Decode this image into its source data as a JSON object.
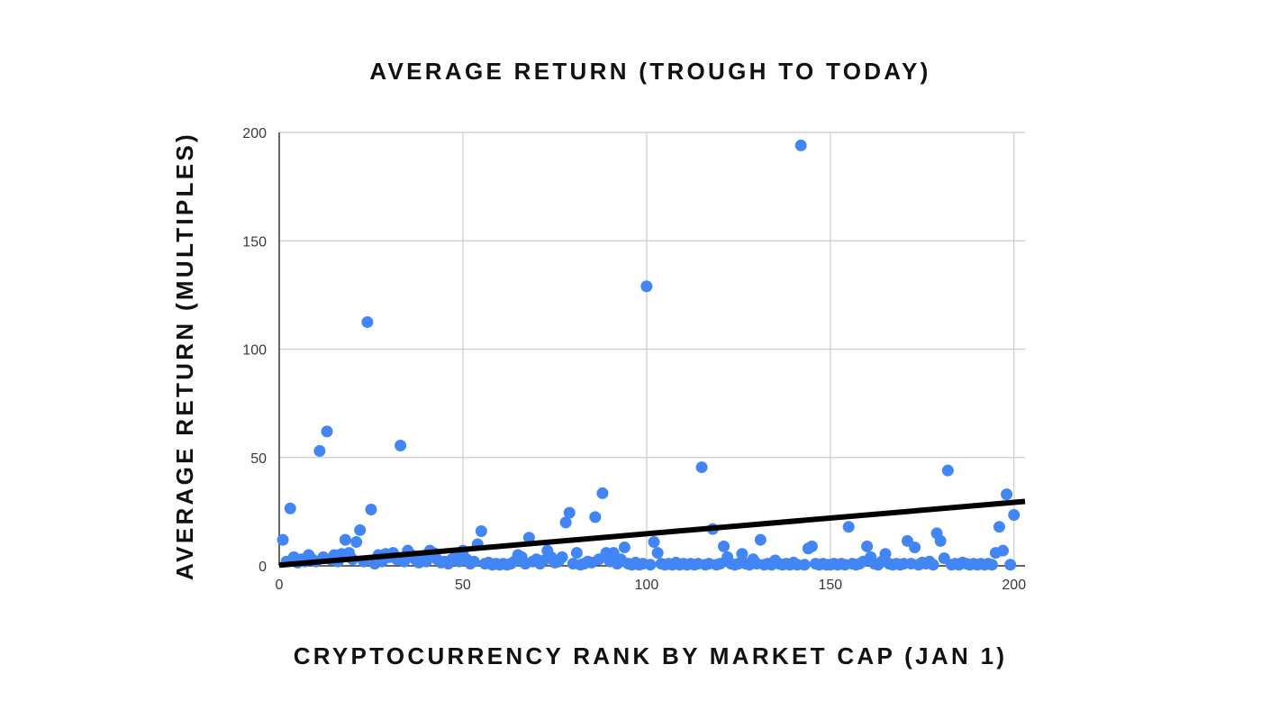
{
  "chart_data": {
    "type": "scatter",
    "title": "AVERAGE RETURN (TROUGH TO TODAY)",
    "xlabel": "CRYPTOCURRENCY RANK BY MARKET CAP (JAN 1)",
    "ylabel": "AVERAGE RETURN (MULTIPLES)",
    "xlim": [
      0,
      203
    ],
    "ylim": [
      0,
      200
    ],
    "xticks": [
      0,
      50,
      100,
      150,
      200
    ],
    "yticks": [
      0,
      50,
      100,
      150,
      200
    ],
    "grid": true,
    "legend": "none",
    "colors": {
      "points": "#4285f4",
      "trendline": "#000000",
      "grid": "#cccccc",
      "axis": "#333333"
    },
    "trendline": {
      "type": "linear",
      "slope": 0.145,
      "intercept": 0.3
    },
    "points": [
      [
        1,
        12
      ],
      [
        2,
        2
      ],
      [
        3,
        26.5
      ],
      [
        4,
        4
      ],
      [
        5,
        1.5
      ],
      [
        6,
        3
      ],
      [
        7,
        2
      ],
      [
        8,
        5
      ],
      [
        9,
        3
      ],
      [
        10,
        2
      ],
      [
        11,
        53
      ],
      [
        12,
        4
      ],
      [
        13,
        62
      ],
      [
        14,
        3
      ],
      [
        15,
        5
      ],
      [
        16,
        2
      ],
      [
        17,
        5.5
      ],
      [
        18,
        12
      ],
      [
        19,
        6
      ],
      [
        20,
        3
      ],
      [
        21,
        11
      ],
      [
        22,
        16.5
      ],
      [
        23,
        2
      ],
      [
        24,
        112.5
      ],
      [
        25,
        26
      ],
      [
        26,
        1
      ],
      [
        27,
        5
      ],
      [
        28,
        2
      ],
      [
        29,
        5.5
      ],
      [
        30,
        4
      ],
      [
        31,
        6
      ],
      [
        32,
        3
      ],
      [
        33,
        55.5
      ],
      [
        34,
        2
      ],
      [
        35,
        7
      ],
      [
        36,
        5
      ],
      [
        37,
        3
      ],
      [
        38,
        1.5
      ],
      [
        39,
        4
      ],
      [
        40,
        2
      ],
      [
        41,
        7
      ],
      [
        42,
        6
      ],
      [
        43,
        3
      ],
      [
        44,
        1.5
      ],
      [
        45,
        2
      ],
      [
        46,
        1
      ],
      [
        47,
        3
      ],
      [
        48,
        4.5
      ],
      [
        49,
        2
      ],
      [
        50,
        7
      ],
      [
        51,
        3
      ],
      [
        52,
        1
      ],
      [
        53,
        2
      ],
      [
        54,
        10
      ],
      [
        55,
        16
      ],
      [
        56,
        1
      ],
      [
        57,
        1.5
      ],
      [
        58,
        0.5
      ],
      [
        59,
        1
      ],
      [
        60,
        0.5
      ],
      [
        61,
        1
      ],
      [
        62,
        0.5
      ],
      [
        63,
        1
      ],
      [
        64,
        2
      ],
      [
        65,
        5
      ],
      [
        66,
        4
      ],
      [
        67,
        1
      ],
      [
        68,
        13
      ],
      [
        69,
        2
      ],
      [
        70,
        3
      ],
      [
        71,
        1
      ],
      [
        72,
        2.5
      ],
      [
        73,
        7
      ],
      [
        74,
        4
      ],
      [
        75,
        1.5
      ],
      [
        76,
        2
      ],
      [
        77,
        4
      ],
      [
        78,
        20
      ],
      [
        79,
        24.5
      ],
      [
        80,
        1
      ],
      [
        81,
        6
      ],
      [
        82,
        0.5
      ],
      [
        83,
        1
      ],
      [
        84,
        2
      ],
      [
        85,
        1.5
      ],
      [
        86,
        22.5
      ],
      [
        87,
        3
      ],
      [
        88,
        33.5
      ],
      [
        89,
        6
      ],
      [
        90,
        2
      ],
      [
        91,
        6
      ],
      [
        92,
        1
      ],
      [
        93,
        3
      ],
      [
        94,
        8.5
      ],
      [
        95,
        1
      ],
      [
        96,
        0.5
      ],
      [
        97,
        1.5
      ],
      [
        98,
        0.5
      ],
      [
        99,
        1
      ],
      [
        100,
        129
      ],
      [
        101,
        0.5
      ],
      [
        102,
        11
      ],
      [
        103,
        6
      ],
      [
        104,
        1
      ],
      [
        105,
        0.5
      ],
      [
        106,
        1
      ],
      [
        107,
        0.5
      ],
      [
        108,
        1.5
      ],
      [
        109,
        0.5
      ],
      [
        110,
        1
      ],
      [
        111,
        0.5
      ],
      [
        112,
        1
      ],
      [
        113,
        0.5
      ],
      [
        114,
        1
      ],
      [
        115,
        45.5
      ],
      [
        116,
        0.5
      ],
      [
        117,
        1
      ],
      [
        118,
        17
      ],
      [
        119,
        0.5
      ],
      [
        120,
        1
      ],
      [
        121,
        9
      ],
      [
        122,
        4
      ],
      [
        123,
        1
      ],
      [
        124,
        0.5
      ],
      [
        125,
        1
      ],
      [
        126,
        5.5
      ],
      [
        127,
        1
      ],
      [
        128,
        0.5
      ],
      [
        129,
        3
      ],
      [
        130,
        1
      ],
      [
        131,
        12
      ],
      [
        132,
        0.5
      ],
      [
        133,
        1
      ],
      [
        134,
        0.5
      ],
      [
        135,
        2.5
      ],
      [
        136,
        1
      ],
      [
        137,
        0.5
      ],
      [
        138,
        1
      ],
      [
        139,
        0.5
      ],
      [
        140,
        1.5
      ],
      [
        141,
        0.5
      ],
      [
        142,
        194
      ],
      [
        143,
        0.5
      ],
      [
        144,
        8
      ],
      [
        145,
        9
      ],
      [
        146,
        1
      ],
      [
        147,
        0.5
      ],
      [
        148,
        1
      ],
      [
        149,
        0.5
      ],
      [
        150,
        0.5
      ],
      [
        151,
        1
      ],
      [
        152,
        0.5
      ],
      [
        153,
        1
      ],
      [
        154,
        0.5
      ],
      [
        155,
        18
      ],
      [
        156,
        1
      ],
      [
        157,
        0.5
      ],
      [
        158,
        1
      ],
      [
        159,
        2
      ],
      [
        160,
        9
      ],
      [
        161,
        4
      ],
      [
        162,
        1
      ],
      [
        163,
        0.5
      ],
      [
        164,
        2
      ],
      [
        165,
        5.5
      ],
      [
        166,
        1
      ],
      [
        167,
        0.5
      ],
      [
        168,
        1
      ],
      [
        169,
        0.5
      ],
      [
        170,
        1
      ],
      [
        171,
        11.5
      ],
      [
        172,
        1
      ],
      [
        173,
        8.5
      ],
      [
        174,
        0.5
      ],
      [
        175,
        1.5
      ],
      [
        176,
        1
      ],
      [
        177,
        2
      ],
      [
        178,
        0.5
      ],
      [
        179,
        15
      ],
      [
        180,
        11.5
      ],
      [
        181,
        3.5
      ],
      [
        182,
        44
      ],
      [
        183,
        0.5
      ],
      [
        184,
        1
      ],
      [
        185,
        0.5
      ],
      [
        186,
        1.5
      ],
      [
        187,
        1
      ],
      [
        188,
        0.5
      ],
      [
        189,
        1
      ],
      [
        190,
        0.5
      ],
      [
        191,
        1
      ],
      [
        192,
        0.5
      ],
      [
        193,
        1
      ],
      [
        194,
        0.5
      ],
      [
        195,
        6
      ],
      [
        196,
        18
      ],
      [
        197,
        7
      ],
      [
        198,
        33
      ],
      [
        199,
        0.5
      ],
      [
        200,
        23.5
      ]
    ]
  }
}
